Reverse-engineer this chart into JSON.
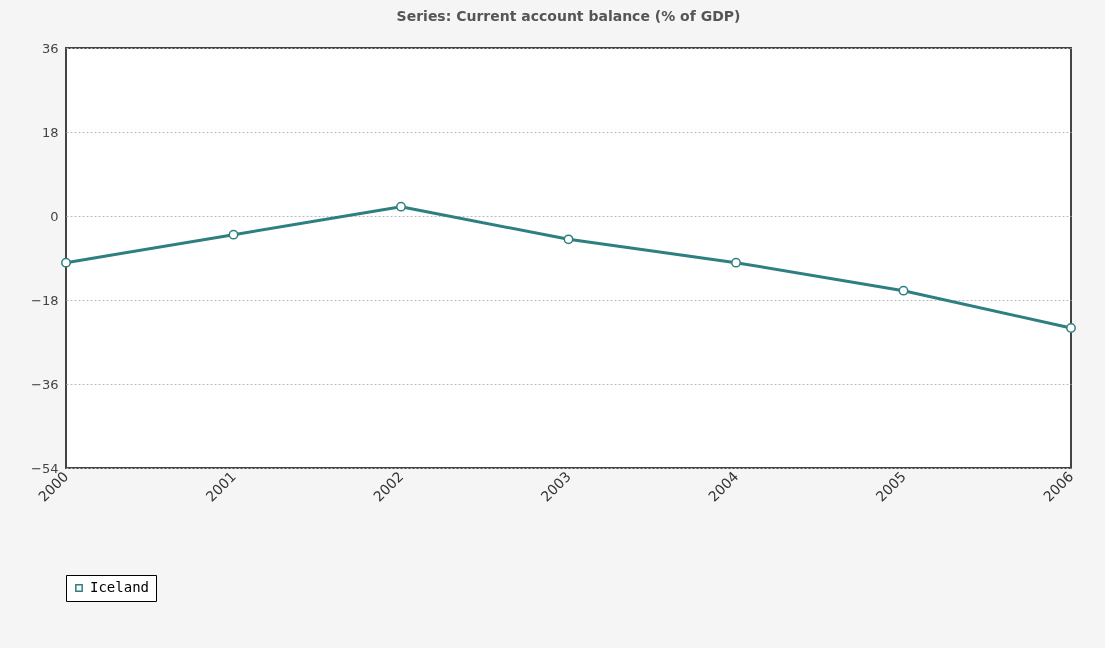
{
  "chart_data": {
    "type": "line",
    "title": "Series: Current account balance (% of GDP)",
    "x": [
      2000,
      2001,
      2002,
      2003,
      2004,
      2005,
      2006
    ],
    "series": [
      {
        "name": "Iceland",
        "color": "#2e7f80",
        "values": [
          -10,
          -4,
          2,
          -5,
          -10,
          -16,
          -24
        ]
      }
    ],
    "xlim": [
      2000,
      2006
    ],
    "xticks": [
      2000,
      2001,
      2002,
      2003,
      2004,
      2005,
      2006
    ],
    "ylim": [
      -54,
      36
    ],
    "yticks": [
      -54,
      -36,
      -18,
      0,
      18,
      36
    ],
    "grid": "y",
    "legend": "bottom",
    "marker": "circle",
    "line_style": "solid"
  }
}
